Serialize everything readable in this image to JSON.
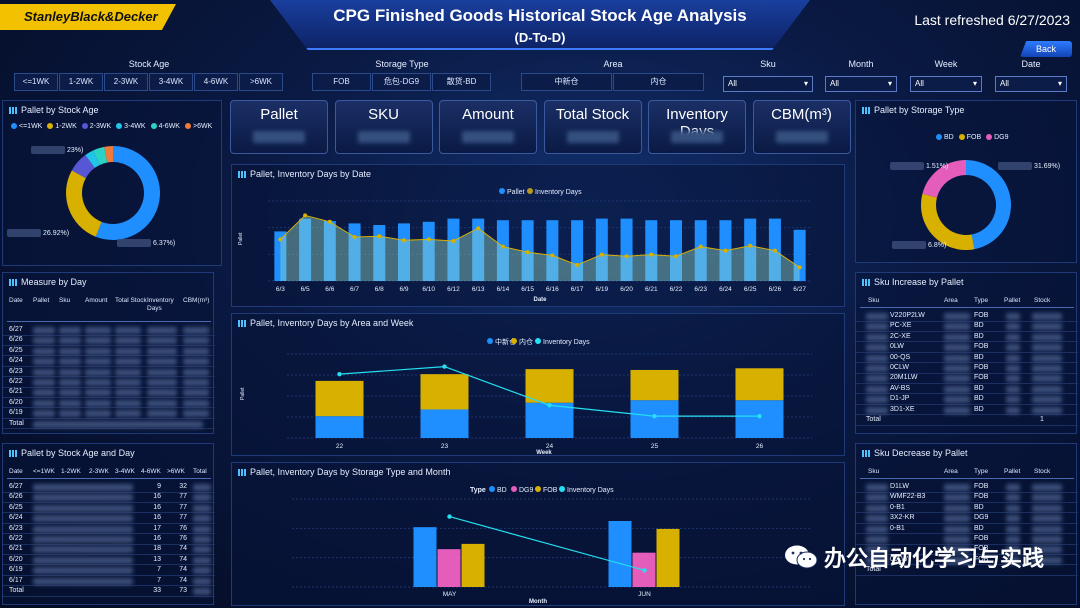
{
  "header": {
    "logo": "StanleyBlack&Decker",
    "title": "CPG Finished Goods Historical Stock Age Analysis",
    "subtitle": "(D-To-D)",
    "refreshed": "Last refreshed 6/27/2023",
    "back": "Back"
  },
  "filters": {
    "stock_age": {
      "label": "Stock Age",
      "options": [
        "<=1WK",
        "1-2WK",
        "2-3WK",
        "3-4WK",
        "4-6WK",
        ">6WK"
      ]
    },
    "storage_type": {
      "label": "Storage Type",
      "options": [
        "FOB",
        "危包-DG9",
        "散货-BD"
      ]
    },
    "area": {
      "label": "Area",
      "options": [
        "中新仓",
        "内仓"
      ]
    },
    "sku": {
      "label": "Sku",
      "value": "All"
    },
    "month": {
      "label": "Month",
      "value": "All"
    },
    "week": {
      "label": "Week",
      "value": "All"
    },
    "date": {
      "label": "Date",
      "value": "All"
    }
  },
  "kpis": [
    "Pallet",
    "SKU",
    "Amount",
    "Total Stock",
    "Inventory Days",
    "CBM(m³)"
  ],
  "colors": {
    "blue": "#1f8fff",
    "yellow": "#d8b000",
    "purple": "#5757d6",
    "lightblue": "#22c5e8",
    "teal": "#2bd3c6",
    "orange": "#f07a3a",
    "pink": "#e45dbb",
    "cyan": "#25e0f0",
    "olive": "#b59a1f",
    "pale": "#8fd4c8"
  },
  "pallet_by_age": {
    "title": "Pallet by Stock Age",
    "legend": [
      "<=1WK",
      "1-2WK",
      "2-3WK",
      "3-4WK",
      "4-6WK",
      ">6WK"
    ],
    "labels": [
      "23%)",
      "26.92%)",
      "6.37%)"
    ],
    "chart_data": {
      "type": "pie",
      "categories": [
        "<=1WK",
        "1-2WK",
        "2-3WK",
        "3-4WK",
        "4-6WK",
        ">6WK"
      ],
      "values": [
        56,
        27,
        7,
        3,
        4,
        3
      ]
    }
  },
  "pallet_by_storage": {
    "title": "Pallet by Storage Type",
    "legend": [
      "BD",
      "FOB",
      "DG9"
    ],
    "labels": [
      "1.51%)",
      "31.69%)",
      "6.8%)"
    ],
    "chart_data": {
      "type": "pie",
      "categories": [
        "BD",
        "FOB",
        "DG9"
      ],
      "values": [
        47,
        32,
        21
      ]
    }
  },
  "date_chart": {
    "title": "Pallet, Inventory Days by Date",
    "legend": [
      "Pallet",
      "Inventory Days"
    ],
    "xlabel": "Date",
    "ylabel": "Pallet",
    "chart_data": {
      "type": "bar",
      "categories": [
        "6/3",
        "6/5",
        "6/6",
        "6/7",
        "6/8",
        "6/9",
        "6/10",
        "6/12",
        "6/13",
        "6/14",
        "6/15",
        "6/16",
        "6/17",
        "6/19",
        "6/20",
        "6/21",
        "6/22",
        "6/23",
        "6/24",
        "6/25",
        "6/26",
        "6/27"
      ],
      "series": [
        {
          "name": "Pallet",
          "values": [
            62,
            78,
            75,
            72,
            70,
            72,
            74,
            78,
            78,
            76,
            76,
            76,
            76,
            78,
            78,
            76,
            76,
            76,
            76,
            78,
            78,
            64
          ]
        },
        {
          "name": "Inventory Days",
          "values": [
            52,
            82,
            74,
            55,
            56,
            51,
            52,
            50,
            66,
            43,
            36,
            32,
            20,
            33,
            31,
            33,
            31,
            43,
            38,
            44,
            38,
            17
          ]
        }
      ],
      "ylim": [
        0,
        100
      ]
    }
  },
  "area_chart": {
    "title": "Pallet, Inventory Days by Area and Week",
    "legend": [
      "中新仓",
      "内仓",
      "Inventory Days"
    ],
    "xlabel": "Week",
    "ylabel": "Pallet",
    "chart_data": {
      "type": "bar",
      "categories": [
        "22",
        "23",
        "24",
        "25",
        "26"
      ],
      "series": [
        {
          "name": "中新仓",
          "values": [
            26,
            34,
            42,
            45,
            45
          ]
        },
        {
          "name": "内仓",
          "values": [
            42,
            42,
            40,
            36,
            38
          ]
        },
        {
          "name": "Inventory Days",
          "values": [
            76,
            85,
            39,
            26,
            26
          ]
        }
      ],
      "ylim": [
        0,
        100
      ]
    }
  },
  "storage_chart": {
    "title": "Pallet, Inventory Days by Storage Type and Month",
    "legend_title": "Type",
    "legend": [
      "BD",
      "DG9",
      "FOB",
      "Inventory Days"
    ],
    "xlabel": "Month",
    "chart_data": {
      "type": "bar",
      "categories": [
        "MAY",
        "JUN"
      ],
      "series": [
        {
          "name": "BD",
          "values": [
            68,
            75
          ]
        },
        {
          "name": "DG9",
          "values": [
            43,
            39
          ]
        },
        {
          "name": "FOB",
          "values": [
            49,
            66
          ]
        },
        {
          "name": "Inventory Days",
          "values": [
            80,
            19
          ]
        }
      ],
      "ylim": [
        0,
        100
      ]
    }
  },
  "measure_by_day": {
    "title": "Measure by Day",
    "headers": [
      "Date",
      "Pallet",
      "Sku",
      "Amount",
      "Total Stock",
      "Inventory Days",
      "CBM(m³)"
    ],
    "rows": [
      "6/27",
      "6/26",
      "6/25",
      "6/24",
      "6/23",
      "6/22",
      "6/21",
      "6/20",
      "6/19"
    ],
    "total": "Total"
  },
  "age_by_day": {
    "title": "Pallet by Stock Age and Day",
    "headers": [
      "Date",
      "<=1WK",
      "1-2WK",
      "2-3WK",
      "3-4WK",
      "4-6WK",
      ">6WK",
      "Total"
    ],
    "rows": [
      [
        "6/27",
        "9",
        "32"
      ],
      [
        "6/26",
        "16",
        "77"
      ],
      [
        "6/25",
        "16",
        "77"
      ],
      [
        "6/24",
        "16",
        "77"
      ],
      [
        "6/23",
        "17",
        "76"
      ],
      [
        "6/22",
        "16",
        "76"
      ],
      [
        "6/21",
        "18",
        "74"
      ],
      [
        "6/20",
        "13",
        "74"
      ],
      [
        "6/19",
        "7",
        "74"
      ],
      [
        "6/17",
        "7",
        "74"
      ]
    ],
    "total": [
      "Total",
      "33",
      "73"
    ]
  },
  "sku_increase": {
    "title": "Sku Increase by Pallet",
    "headers": [
      "Sku",
      "Area",
      "Type",
      "Pallet",
      "Stock"
    ],
    "rows": [
      [
        "V220P2LW",
        "FOB"
      ],
      [
        "PC-XE",
        "BD"
      ],
      [
        "2C-XE",
        "BD"
      ],
      [
        "0LW",
        "FOB"
      ],
      [
        "00-QS",
        "BD"
      ],
      [
        "0CLW",
        "FOB"
      ],
      [
        "20M1LW",
        "FOB"
      ],
      [
        "AV-BS",
        "BD"
      ],
      [
        "D1-JP",
        "BD"
      ],
      [
        "3D1-XE",
        "BD"
      ]
    ],
    "total": [
      "Total",
      "1"
    ]
  },
  "sku_decrease": {
    "title": "Sku Decrease by Pallet",
    "headers": [
      "Sku",
      "Area",
      "Type",
      "Pallet",
      "Stock"
    ],
    "rows": [
      [
        "D1LW",
        "FOB"
      ],
      [
        "WMF22-B3",
        "FOB"
      ],
      [
        "0-B1",
        "BD"
      ],
      [
        "3X2-KR",
        "DG9"
      ],
      [
        "0-B1",
        "BD"
      ],
      [
        "",
        "FOB"
      ],
      [
        "",
        "FOB"
      ],
      [
        "00LW",
        "FOB"
      ]
    ],
    "total": [
      "Total"
    ]
  },
  "watermark": "办公自动化学习与实践"
}
